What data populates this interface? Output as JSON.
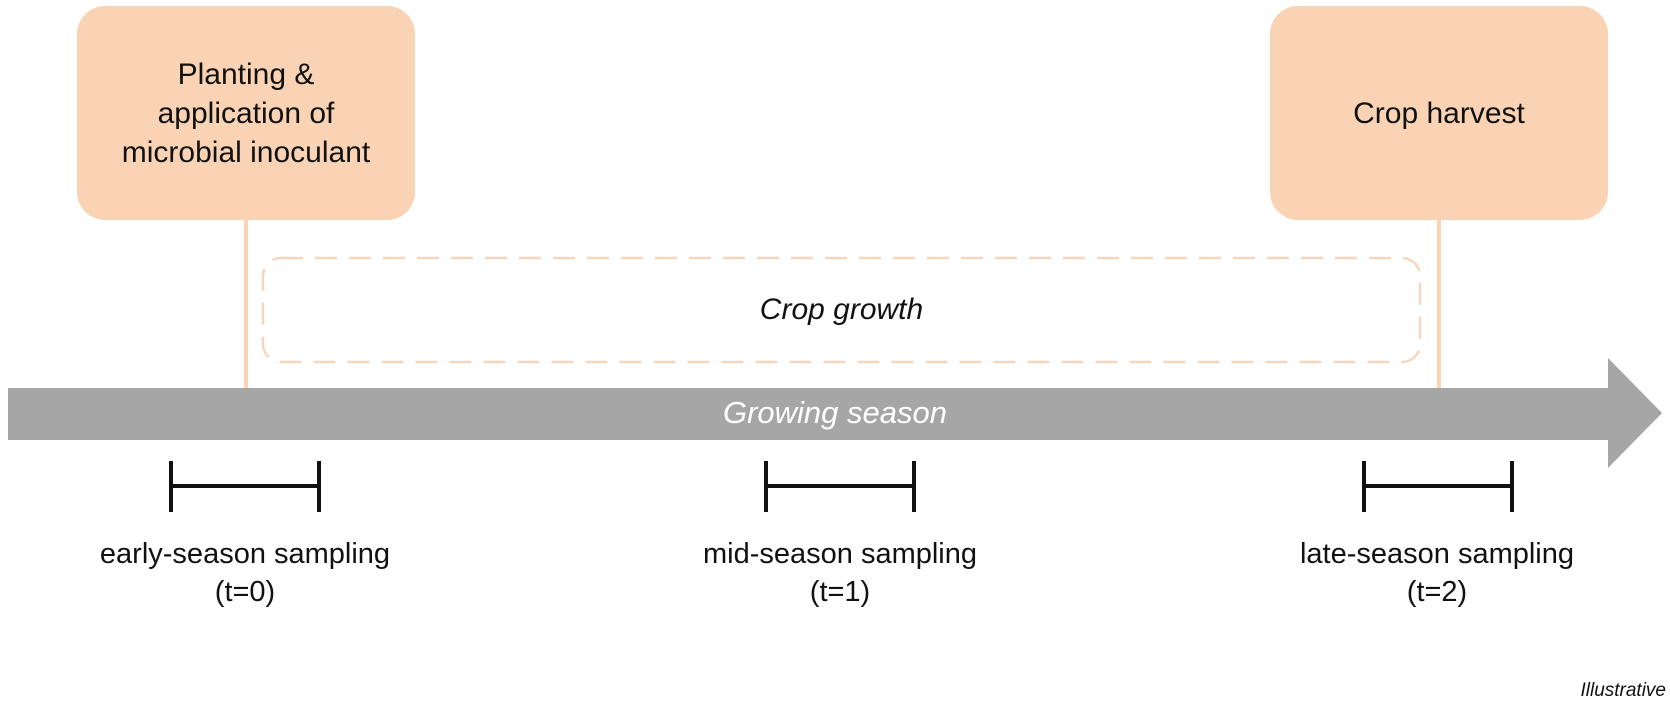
{
  "events": {
    "planting": "Planting &\napplication of\nmicrobial inoculant",
    "harvest": "Crop harvest"
  },
  "growth_label": "Crop growth",
  "season_label": "Growing season",
  "sampling": [
    {
      "name": "early-season sampling",
      "time": "(t=0)"
    },
    {
      "name": "mid-season sampling",
      "time": "(t=1)"
    },
    {
      "name": "late-season sampling",
      "time": "(t=2)"
    }
  ],
  "footnote": "Illustrative",
  "colors": {
    "event_fill": "#f9d3b3",
    "growth_dash": "#f6d6bd",
    "season_arrow": "#a6a6a6",
    "sampling_bar": "#111111"
  }
}
